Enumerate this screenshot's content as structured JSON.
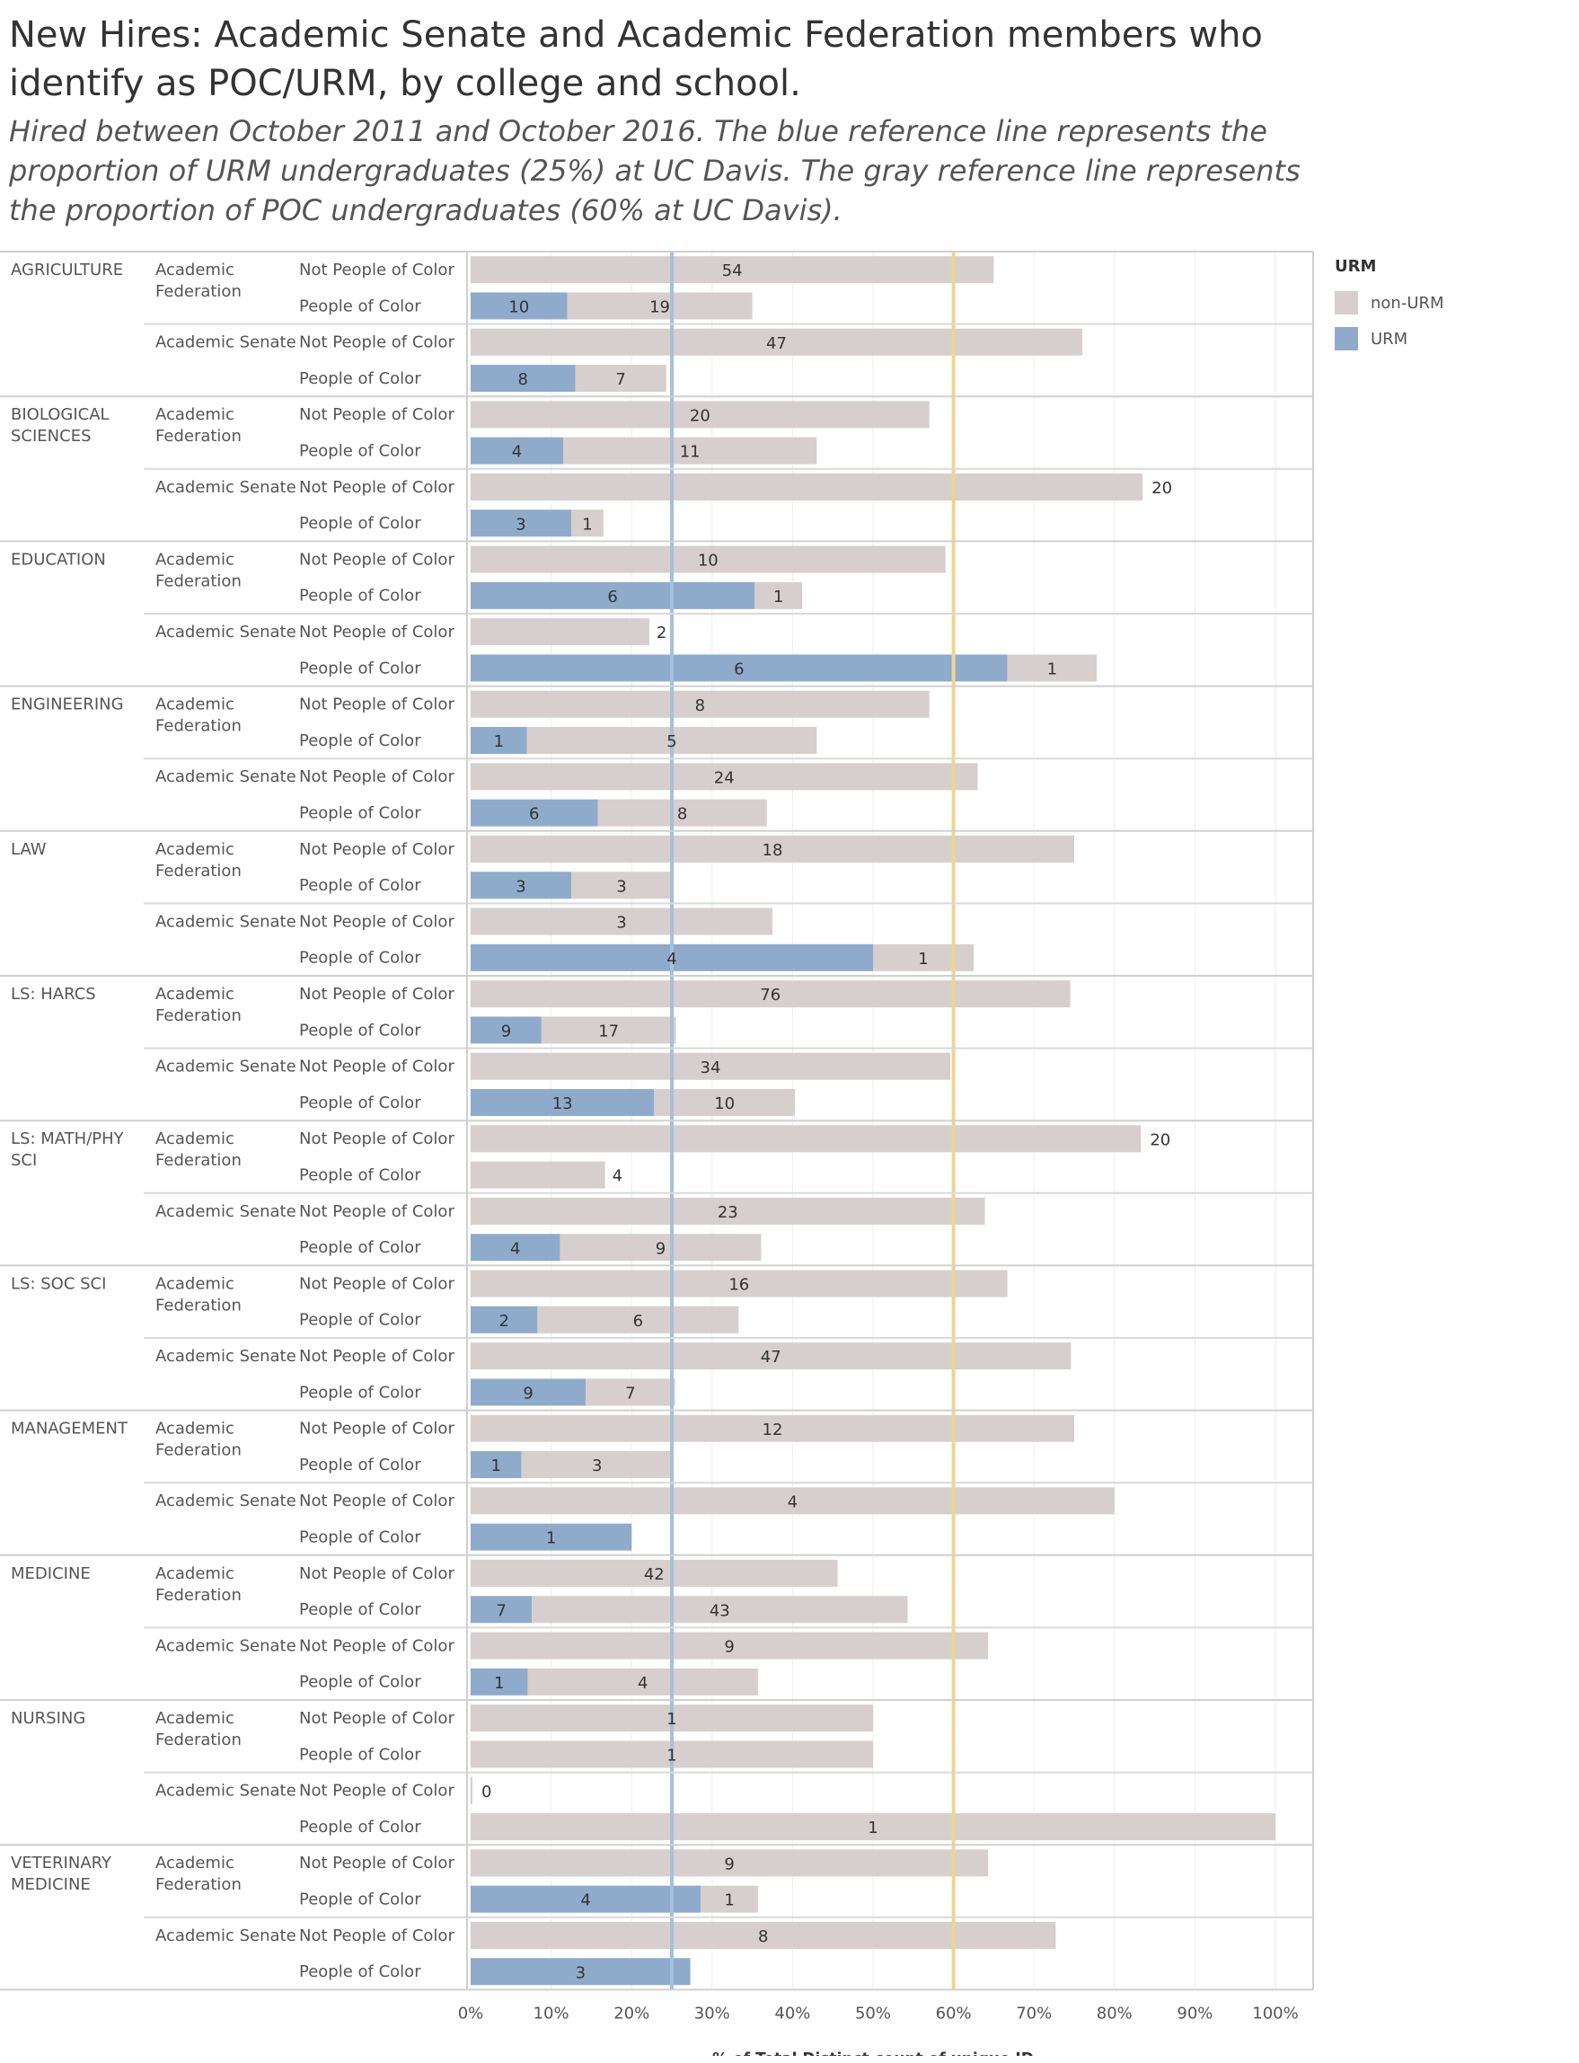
{
  "title": "New Hires: Academic Senate and Academic Federation members who identify as POC/URM, by college and school.",
  "subtitle": "Hired between October 2011 and October 2016. The blue reference line represents the proportion of URM undergraduates (25%) at UC Davis. The gray reference line represents the proportion of POC undergraduates (60% at UC Davis).",
  "colors": {
    "urm": "#8fabcb",
    "non_urm": "#d6cfcd",
    "urm_ref": "#a4c1dd",
    "poc_ref": "#f0d590"
  },
  "legend": {
    "title": "URM",
    "items": [
      "non-URM",
      "URM"
    ]
  },
  "chart_data": {
    "type": "bar",
    "orientation": "horizontal",
    "stacked": true,
    "xlabel": "% of Total Distinct count of unique ID",
    "xlim": [
      0,
      100
    ],
    "xticks": [
      "0%",
      "10%",
      "20%",
      "30%",
      "40%",
      "50%",
      "60%",
      "70%",
      "80%",
      "90%",
      "100%"
    ],
    "grid": true,
    "legend_position": "top-right",
    "reference_lines": [
      {
        "name": "URM undergraduates",
        "value": 25,
        "color": "#a4c1dd"
      },
      {
        "name": "POC undergraduates",
        "value": 60,
        "color": "#f0d590"
      }
    ],
    "colleges": [
      {
        "name": "AGRICULTURE",
        "groups": [
          {
            "name": "Academic Federation",
            "rows": [
              {
                "label": "Not People of Color",
                "urm_pct": 0,
                "nonurm_pct": 65,
                "urm_count": null,
                "nonurm_count": 54
              },
              {
                "label": "People of Color",
                "urm_pct": 12,
                "nonurm_pct": 23,
                "urm_count": 10,
                "nonurm_count": 19
              }
            ]
          },
          {
            "name": "Academic Senate",
            "rows": [
              {
                "label": "Not People of Color",
                "urm_pct": 0,
                "nonurm_pct": 76,
                "urm_count": null,
                "nonurm_count": 47
              },
              {
                "label": "People of Color",
                "urm_pct": 13,
                "nonurm_pct": 11.3,
                "urm_count": 8,
                "nonurm_count": 7
              }
            ]
          }
        ]
      },
      {
        "name": "BIOLOGICAL SCIENCES",
        "groups": [
          {
            "name": "Academic Federation",
            "rows": [
              {
                "label": "Not People of Color",
                "urm_pct": 0,
                "nonurm_pct": 57,
                "urm_count": null,
                "nonurm_count": 20
              },
              {
                "label": "People of Color",
                "urm_pct": 11.5,
                "nonurm_pct": 31.5,
                "urm_count": 4,
                "nonurm_count": 11
              }
            ]
          },
          {
            "name": "Academic Senate",
            "rows": [
              {
                "label": "Not People of Color",
                "urm_pct": 0,
                "nonurm_pct": 83.5,
                "urm_count": null,
                "nonurm_count": 20
              },
              {
                "label": "People of Color",
                "urm_pct": 12.5,
                "nonurm_pct": 4,
                "urm_count": 3,
                "nonurm_count": 1
              }
            ]
          }
        ]
      },
      {
        "name": "EDUCATION",
        "groups": [
          {
            "name": "Academic Federation",
            "rows": [
              {
                "label": "Not People of Color",
                "urm_pct": 0,
                "nonurm_pct": 59,
                "urm_count": null,
                "nonurm_count": 10
              },
              {
                "label": "People of Color",
                "urm_pct": 35.3,
                "nonurm_pct": 5.9,
                "urm_count": 6,
                "nonurm_count": 1
              }
            ]
          },
          {
            "name": "Academic Senate",
            "rows": [
              {
                "label": "Not People of Color",
                "urm_pct": 0,
                "nonurm_pct": 22.2,
                "urm_count": null,
                "nonurm_count": 2
              },
              {
                "label": "People of Color",
                "urm_pct": 66.7,
                "nonurm_pct": 11.1,
                "urm_count": 6,
                "nonurm_count": 1
              }
            ]
          }
        ]
      },
      {
        "name": "ENGINEERING",
        "groups": [
          {
            "name": "Academic Federation",
            "rows": [
              {
                "label": "Not People of Color",
                "urm_pct": 0,
                "nonurm_pct": 57,
                "urm_count": null,
                "nonurm_count": 8
              },
              {
                "label": "People of Color",
                "urm_pct": 7,
                "nonurm_pct": 36,
                "urm_count": 1,
                "nonurm_count": 5
              }
            ]
          },
          {
            "name": "Academic Senate",
            "rows": [
              {
                "label": "Not People of Color",
                "urm_pct": 0,
                "nonurm_pct": 63,
                "urm_count": null,
                "nonurm_count": 24
              },
              {
                "label": "People of Color",
                "urm_pct": 15.8,
                "nonurm_pct": 21,
                "urm_count": 6,
                "nonurm_count": 8
              }
            ]
          }
        ]
      },
      {
        "name": "LAW",
        "groups": [
          {
            "name": "Academic Federation",
            "rows": [
              {
                "label": "Not People of Color",
                "urm_pct": 0,
                "nonurm_pct": 75,
                "urm_count": null,
                "nonurm_count": 18
              },
              {
                "label": "People of Color",
                "urm_pct": 12.5,
                "nonurm_pct": 12.5,
                "urm_count": 3,
                "nonurm_count": 3
              }
            ]
          },
          {
            "name": "Academic Senate",
            "rows": [
              {
                "label": "Not People of Color",
                "urm_pct": 0,
                "nonurm_pct": 37.5,
                "urm_count": null,
                "nonurm_count": 3
              },
              {
                "label": "People of Color",
                "urm_pct": 50,
                "nonurm_pct": 12.5,
                "urm_count": 4,
                "nonurm_count": 1
              }
            ]
          }
        ]
      },
      {
        "name": "LS: HARCS",
        "groups": [
          {
            "name": "Academic Federation",
            "rows": [
              {
                "label": "Not People of Color",
                "urm_pct": 0,
                "nonurm_pct": 74.5,
                "urm_count": null,
                "nonurm_count": 76
              },
              {
                "label": "People of Color",
                "urm_pct": 8.8,
                "nonurm_pct": 16.7,
                "urm_count": 9,
                "nonurm_count": 17
              }
            ]
          },
          {
            "name": "Academic Senate",
            "rows": [
              {
                "label": "Not People of Color",
                "urm_pct": 0,
                "nonurm_pct": 59.6,
                "urm_count": null,
                "nonurm_count": 34
              },
              {
                "label": "People of Color",
                "urm_pct": 22.8,
                "nonurm_pct": 17.5,
                "urm_count": 13,
                "nonurm_count": 10
              }
            ]
          }
        ]
      },
      {
        "name": "LS: MATH/PHY SCI",
        "groups": [
          {
            "name": "Academic Federation",
            "rows": [
              {
                "label": "Not People of Color",
                "urm_pct": 0,
                "nonurm_pct": 83.3,
                "urm_count": null,
                "nonurm_count": 20
              },
              {
                "label": "People of Color",
                "urm_pct": 0,
                "nonurm_pct": 16.7,
                "urm_count": null,
                "nonurm_count": 4
              }
            ]
          },
          {
            "name": "Academic Senate",
            "rows": [
              {
                "label": "Not People of Color",
                "urm_pct": 0,
                "nonurm_pct": 63.9,
                "urm_count": null,
                "nonurm_count": 23
              },
              {
                "label": "People of Color",
                "urm_pct": 11.1,
                "nonurm_pct": 25,
                "urm_count": 4,
                "nonurm_count": 9
              }
            ]
          }
        ]
      },
      {
        "name": "LS: SOC SCI",
        "groups": [
          {
            "name": "Academic Federation",
            "rows": [
              {
                "label": "Not People of Color",
                "urm_pct": 0,
                "nonurm_pct": 66.7,
                "urm_count": null,
                "nonurm_count": 16
              },
              {
                "label": "People of Color",
                "urm_pct": 8.3,
                "nonurm_pct": 25,
                "urm_count": 2,
                "nonurm_count": 6
              }
            ]
          },
          {
            "name": "Academic Senate",
            "rows": [
              {
                "label": "Not People of Color",
                "urm_pct": 0,
                "nonurm_pct": 74.6,
                "urm_count": null,
                "nonurm_count": 47
              },
              {
                "label": "People of Color",
                "urm_pct": 14.3,
                "nonurm_pct": 11.1,
                "urm_count": 9,
                "nonurm_count": 7
              }
            ]
          }
        ]
      },
      {
        "name": "MANAGEMENT",
        "groups": [
          {
            "name": "Academic Federation",
            "rows": [
              {
                "label": "Not People of Color",
                "urm_pct": 0,
                "nonurm_pct": 75,
                "urm_count": null,
                "nonurm_count": 12
              },
              {
                "label": "People of Color",
                "urm_pct": 6.3,
                "nonurm_pct": 18.8,
                "urm_count": 1,
                "nonurm_count": 3
              }
            ]
          },
          {
            "name": "Academic Senate",
            "rows": [
              {
                "label": "Not People of Color",
                "urm_pct": 0,
                "nonurm_pct": 80,
                "urm_count": null,
                "nonurm_count": 4
              },
              {
                "label": "People of Color",
                "urm_pct": 20,
                "nonurm_pct": 0,
                "urm_count": 1,
                "nonurm_count": null
              }
            ]
          }
        ]
      },
      {
        "name": "MEDICINE",
        "groups": [
          {
            "name": "Academic Federation",
            "rows": [
              {
                "label": "Not People of Color",
                "urm_pct": 0,
                "nonurm_pct": 45.6,
                "urm_count": null,
                "nonurm_count": 42
              },
              {
                "label": "People of Color",
                "urm_pct": 7.6,
                "nonurm_pct": 46.7,
                "urm_count": 7,
                "nonurm_count": 43
              }
            ]
          },
          {
            "name": "Academic Senate",
            "rows": [
              {
                "label": "Not People of Color",
                "urm_pct": 0,
                "nonurm_pct": 64.3,
                "urm_count": null,
                "nonurm_count": 9
              },
              {
                "label": "People of Color",
                "urm_pct": 7.1,
                "nonurm_pct": 28.6,
                "urm_count": 1,
                "nonurm_count": 4
              }
            ]
          }
        ]
      },
      {
        "name": "NURSING",
        "groups": [
          {
            "name": "Academic Federation",
            "rows": [
              {
                "label": "Not People of Color",
                "urm_pct": 0,
                "nonurm_pct": 50,
                "urm_count": null,
                "nonurm_count": 1
              },
              {
                "label": "People of Color",
                "urm_pct": 0,
                "nonurm_pct": 50,
                "urm_count": null,
                "nonurm_count": 1
              }
            ]
          },
          {
            "name": "Academic Senate",
            "rows": [
              {
                "label": "Not People of Color",
                "urm_pct": 0,
                "nonurm_pct": 0,
                "urm_count": null,
                "nonurm_count": 0
              },
              {
                "label": "People of Color",
                "urm_pct": 0,
                "nonurm_pct": 100,
                "urm_count": null,
                "nonurm_count": 1
              }
            ]
          }
        ]
      },
      {
        "name": "VETERINARY MEDICINE",
        "groups": [
          {
            "name": "Academic Federation",
            "rows": [
              {
                "label": "Not People of Color",
                "urm_pct": 0,
                "nonurm_pct": 64.3,
                "urm_count": null,
                "nonurm_count": 9
              },
              {
                "label": "People of Color",
                "urm_pct": 28.6,
                "nonurm_pct": 7.1,
                "urm_count": 4,
                "nonurm_count": 1
              }
            ]
          },
          {
            "name": "Academic Senate",
            "rows": [
              {
                "label": "Not People of Color",
                "urm_pct": 0,
                "nonurm_pct": 72.7,
                "urm_count": null,
                "nonurm_count": 8
              },
              {
                "label": "People of Color",
                "urm_pct": 27.3,
                "nonurm_pct": 0,
                "urm_count": 3,
                "nonurm_count": null
              }
            ]
          }
        ]
      }
    ]
  }
}
